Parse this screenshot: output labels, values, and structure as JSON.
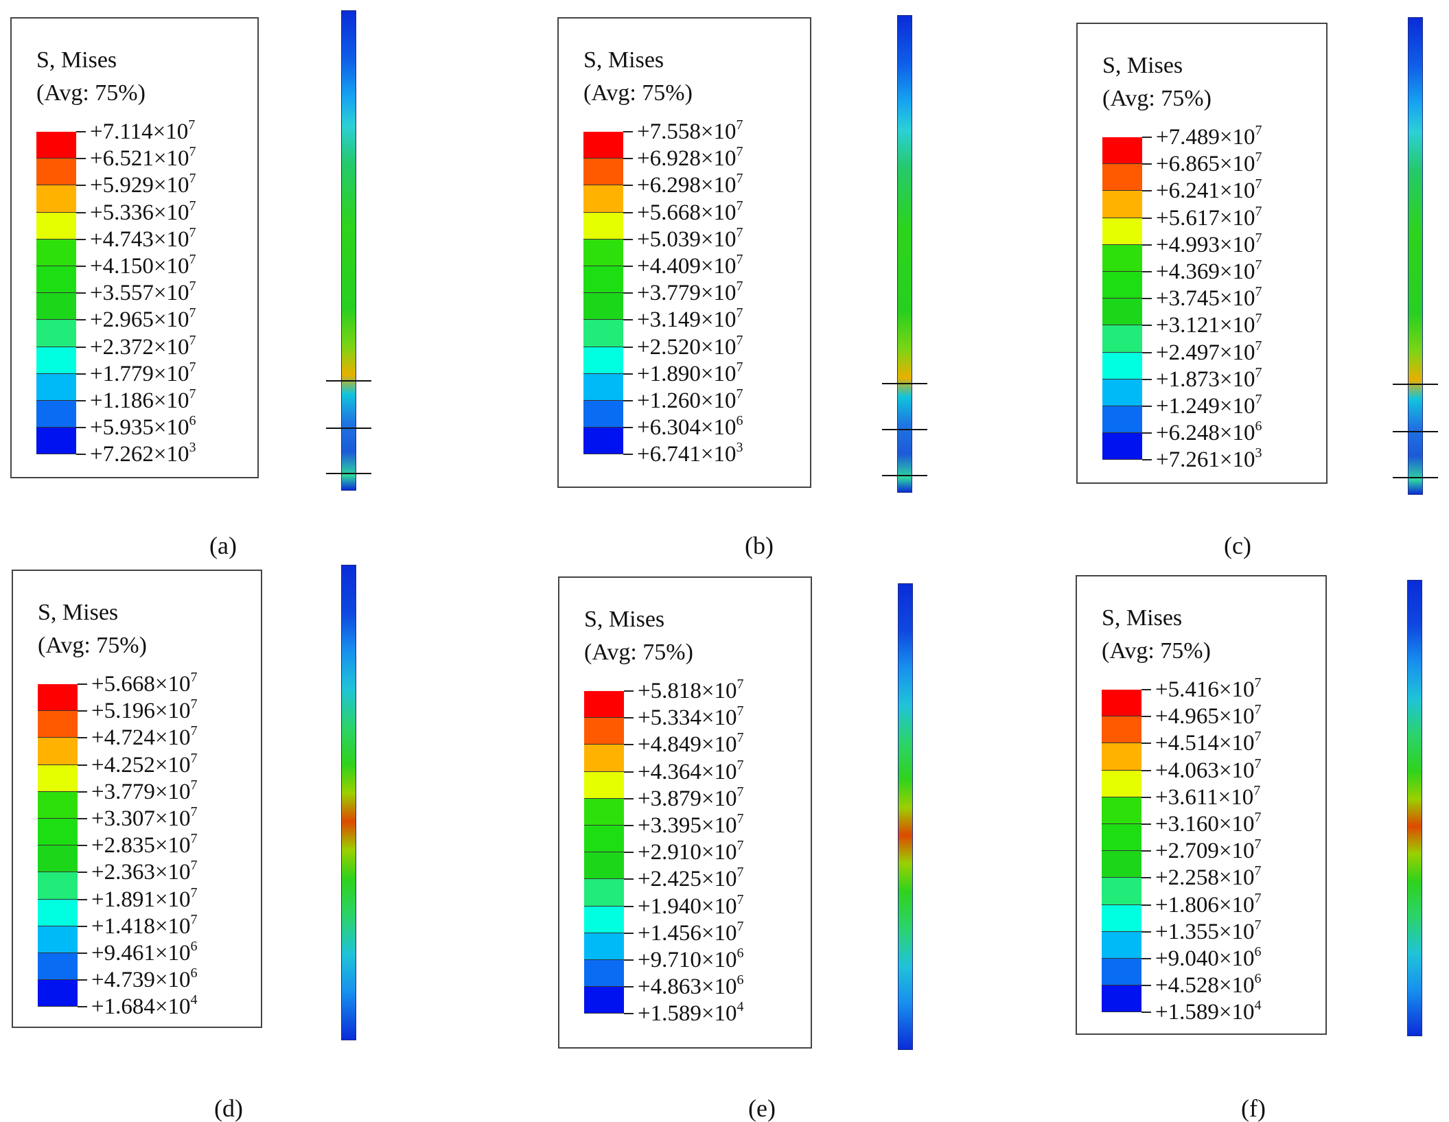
{
  "title_line1": "S, Mises",
  "title_line2": "(Avg: 75%)",
  "colors": [
    "#ff0000",
    "#ff5a00",
    "#ffb200",
    "#e6ff00",
    "#2ee00b",
    "#1dde12",
    "#1cd61a",
    "#21eb79",
    "#00ffe1",
    "#00b9f7",
    "#0a6cf2",
    "#0012ef"
  ],
  "panels": [
    {
      "caption": "(a)",
      "labels": [
        "+7.114×10^7",
        "+6.521×10^7",
        "+5.929×10^7",
        "+5.336×10^7",
        "+4.743×10^7",
        "+4.150×10^7",
        "+3.557×10^7",
        "+2.965×10^7",
        "+2.372×10^7",
        "+1.779×10^7",
        "+1.186×10^7",
        "+5.935×10^6",
        "+7.262×10^3"
      ],
      "lines": [
        0.77,
        0.868,
        0.963
      ],
      "rod_style": "lower"
    },
    {
      "caption": "(b)",
      "labels": [
        "+7.558×10^7",
        "+6.928×10^7",
        "+6.298×10^7",
        "+5.668×10^7",
        "+5.039×10^7",
        "+4.409×10^7",
        "+3.779×10^7",
        "+3.149×10^7",
        "+2.520×10^7",
        "+1.890×10^7",
        "+1.260×10^7",
        "+6.304×10^6",
        "+6.741×10^3"
      ],
      "lines": [
        0.77,
        0.866,
        0.962
      ],
      "rod_style": "lower"
    },
    {
      "caption": "(c)",
      "labels": [
        "+7.489×10^7",
        "+6.865×10^7",
        "+6.241×10^7",
        "+5.617×10^7",
        "+4.993×10^7",
        "+4.369×10^7",
        "+3.745×10^7",
        "+3.121×10^7",
        "+2.497×10^7",
        "+1.873×10^7",
        "+1.249×10^7",
        "+6.248×10^6",
        "+7.261×10^3"
      ],
      "lines": [
        0.767,
        0.866,
        0.962
      ],
      "rod_style": "lower"
    },
    {
      "caption": "(d)",
      "labels": [
        "+5.668×10^7",
        "+5.196×10^7",
        "+4.724×10^7",
        "+4.252×10^7",
        "+3.779×10^7",
        "+3.307×10^7",
        "+2.835×10^7",
        "+2.363×10^7",
        "+1.891×10^7",
        "+1.418×10^7",
        "+9.461×10^6",
        "+4.739×10^6",
        "+1.684×10^4"
      ],
      "lines": [],
      "rod_style": "middle"
    },
    {
      "caption": "(e)",
      "labels": [
        "+5.818×10^7",
        "+5.334×10^7",
        "+4.849×10^7",
        "+4.364×10^7",
        "+3.879×10^7",
        "+3.395×10^7",
        "+2.910×10^7",
        "+2.425×10^7",
        "+1.940×10^7",
        "+1.456×10^7",
        "+9.710×10^6",
        "+4.863×10^6",
        "+1.589×10^4"
      ],
      "lines": [],
      "rod_style": "middle"
    },
    {
      "caption": "(f)",
      "labels": [
        "+5.416×10^7",
        "+4.965×10^7",
        "+4.514×10^7",
        "+4.063×10^7",
        "+3.611×10^7",
        "+3.160×10^7",
        "+2.709×10^7",
        "+2.258×10^7",
        "+1.806×10^7",
        "+1.355×10^7",
        "+9.040×10^6",
        "+4.528×10^6",
        "+1.589×10^4"
      ],
      "lines": [],
      "rod_style": "middle"
    }
  ]
}
